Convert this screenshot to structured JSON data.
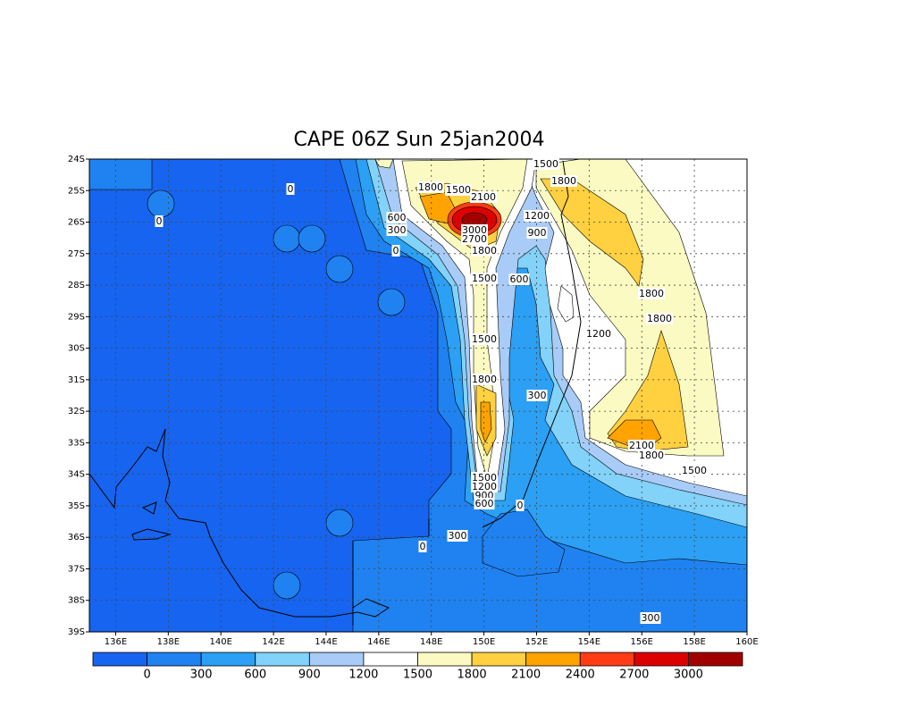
{
  "chart_data": {
    "type": "contour",
    "title": "CAPE 06Z Sun 25jan2004",
    "xlim": [
      135,
      160
    ],
    "ylim": [
      -39,
      -24
    ],
    "xticks": [
      {
        "value": 136,
        "label": "136E"
      },
      {
        "value": 138,
        "label": "138E"
      },
      {
        "value": 140,
        "label": "140E"
      },
      {
        "value": 142,
        "label": "142E"
      },
      {
        "value": 144,
        "label": "144E"
      },
      {
        "value": 146,
        "label": "146E"
      },
      {
        "value": 148,
        "label": "148E"
      },
      {
        "value": 150,
        "label": "150E"
      },
      {
        "value": 152,
        "label": "152E"
      },
      {
        "value": 154,
        "label": "154E"
      },
      {
        "value": 156,
        "label": "156E"
      },
      {
        "value": 158,
        "label": "158E"
      },
      {
        "value": 160,
        "label": "160E"
      }
    ],
    "yticks": [
      {
        "value": -24,
        "label": "24S"
      },
      {
        "value": -25,
        "label": "25S"
      },
      {
        "value": -26,
        "label": "26S"
      },
      {
        "value": -27,
        "label": "27S"
      },
      {
        "value": -28,
        "label": "28S"
      },
      {
        "value": -29,
        "label": "29S"
      },
      {
        "value": -30,
        "label": "30S"
      },
      {
        "value": -31,
        "label": "31S"
      },
      {
        "value": -32,
        "label": "32S"
      },
      {
        "value": -33,
        "label": "33S"
      },
      {
        "value": -34,
        "label": "34S"
      },
      {
        "value": -35,
        "label": "35S"
      },
      {
        "value": -36,
        "label": "36S"
      },
      {
        "value": -37,
        "label": "37S"
      },
      {
        "value": -38,
        "label": "38S"
      },
      {
        "value": -39,
        "label": "39S"
      }
    ],
    "grid": true,
    "levels": [
      0,
      300,
      600,
      900,
      1200,
      1500,
      1800,
      2100,
      2400,
      2700,
      3000
    ],
    "colors": [
      "#1664ef",
      "#1f82f0",
      "#2ba0f4",
      "#82d2fa",
      "#a8ccf7",
      "#ffffff",
      "#fafac2",
      "#ffd040",
      "#ffa300",
      "#ff3c14",
      "#dc0000",
      "#a00000"
    ],
    "contour_labels": [
      0,
      0,
      600,
      300,
      0,
      1800,
      1500,
      2100,
      3000,
      2700,
      1800,
      1500,
      1800,
      1200,
      900,
      1500,
      600,
      1800,
      1800,
      1200,
      1500,
      1800,
      300,
      2100,
      1800,
      1500,
      1500,
      1200,
      900,
      600,
      0,
      300,
      0,
      300
    ]
  }
}
